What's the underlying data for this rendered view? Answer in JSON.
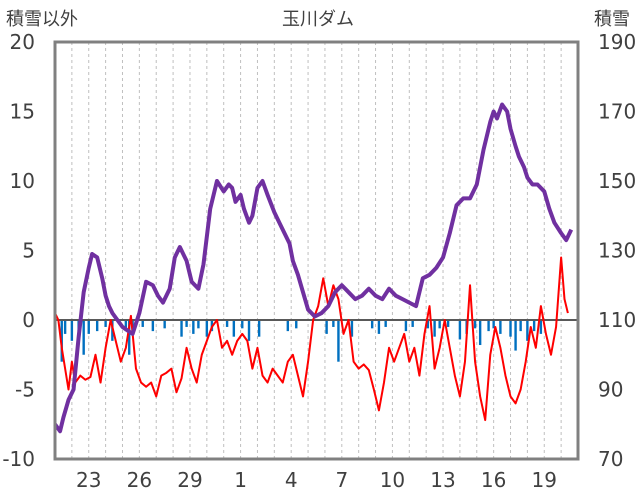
{
  "chart_data": {
    "type": "line",
    "title": "玉川ダム",
    "left_axis": {
      "label": "積雪以外",
      "ylim": [
        -10,
        20
      ],
      "ticks": [
        -10,
        -5,
        0,
        5,
        10,
        15,
        20
      ]
    },
    "right_axis": {
      "label": "積雪",
      "ylim": [
        70,
        190
      ],
      "ticks": [
        70,
        90,
        110,
        130,
        150,
        170,
        190
      ]
    },
    "x_ticks": [
      "23",
      "26",
      "29",
      "1",
      "4",
      "7",
      "10",
      "13",
      "16",
      "19"
    ],
    "x_tick_days": [
      2,
      5,
      8,
      11,
      14,
      17,
      20,
      23,
      26,
      29
    ],
    "x_range_days": [
      0,
      31
    ],
    "grid": "vertical dashed daily lines",
    "colors": {
      "snow_line": "#7030a0",
      "temp_line": "#ff0000",
      "precip_bars": "#0070c0",
      "zero_line": "#595959",
      "frame": "#808080"
    },
    "series": [
      {
        "axis": "right",
        "x": [
          0,
          0.3,
          0.5,
          0.8,
          1.1,
          1.4,
          1.7,
          2.0,
          2.2,
          2.5,
          2.8,
          3.0,
          3.2,
          3.4,
          3.7,
          4.0,
          4.3,
          4.6,
          5.0,
          5.4,
          5.8,
          6.1,
          6.4,
          6.8,
          7.1,
          7.4,
          7.8,
          8.1,
          8.5,
          8.8,
          9.2,
          9.6,
          10.0,
          10.3,
          10.5,
          10.7,
          11.0,
          11.2,
          11.5,
          11.7,
          12.0,
          12.3,
          12.6,
          13.0,
          13.3,
          13.6,
          13.9,
          14.1,
          14.4,
          14.7,
          15.0,
          15.4,
          15.8,
          16.2,
          16.6,
          17.0,
          17.4,
          17.8,
          18.2,
          18.6,
          19.0,
          19.4,
          19.8,
          20.2,
          20.6,
          21.0,
          21.4,
          21.8,
          22.2,
          22.6,
          23.0,
          23.4,
          23.8,
          24.2,
          24.6,
          25.0,
          25.4,
          25.8,
          26.0,
          26.2,
          26.5,
          26.8,
          27.0,
          27.3,
          27.5,
          27.8,
          28.0,
          28.3,
          28.6,
          29.0,
          29.3,
          29.6,
          30.0,
          30.3,
          30.6
        ],
        "y": [
          80,
          78,
          82,
          87,
          90,
          105,
          118,
          125,
          129,
          128,
          122,
          117,
          114,
          112,
          110,
          108,
          107,
          106,
          112,
          121,
          120,
          117,
          115,
          119,
          128,
          131,
          127,
          121,
          119,
          126,
          142,
          150,
          147,
          149,
          148,
          144,
          146,
          142,
          138,
          140,
          148,
          150,
          146,
          141,
          138,
          135,
          132,
          127,
          123,
          118,
          113,
          111,
          112,
          114,
          118,
          120,
          118,
          116,
          117,
          119,
          117,
          116,
          119,
          117,
          116,
          115,
          114,
          122,
          123,
          125,
          128,
          135,
          143,
          145,
          145,
          149,
          159,
          167,
          170,
          168,
          172,
          170,
          165,
          160,
          157,
          154,
          151,
          149,
          149,
          147,
          142,
          138,
          135,
          133,
          136
        ]
      },
      {
        "axis": "left",
        "x": [
          0,
          0.2,
          0.4,
          0.6,
          0.8,
          1.0,
          1.2,
          1.5,
          1.8,
          2.1,
          2.4,
          2.7,
          3.0,
          3.3,
          3.6,
          3.9,
          4.2,
          4.5,
          4.8,
          5.1,
          5.4,
          5.7,
          6.0,
          6.3,
          6.6,
          6.9,
          7.2,
          7.5,
          7.8,
          8.1,
          8.4,
          8.7,
          9.0,
          9.3,
          9.6,
          9.9,
          10.2,
          10.5,
          10.8,
          11.1,
          11.4,
          11.7,
          12.0,
          12.3,
          12.6,
          12.9,
          13.2,
          13.5,
          13.8,
          14.1,
          14.4,
          14.7,
          15.0,
          15.3,
          15.6,
          15.9,
          16.2,
          16.5,
          16.8,
          17.1,
          17.4,
          17.7,
          18.0,
          18.3,
          18.6,
          18.9,
          19.2,
          19.5,
          19.8,
          20.1,
          20.4,
          20.7,
          21.0,
          21.3,
          21.6,
          21.9,
          22.2,
          22.5,
          22.8,
          23.1,
          23.4,
          23.7,
          24.0,
          24.3,
          24.6,
          24.9,
          25.2,
          25.5,
          25.8,
          26.1,
          26.4,
          26.7,
          27.0,
          27.3,
          27.6,
          27.9,
          28.2,
          28.5,
          28.8,
          29.1,
          29.4,
          29.7,
          30.0,
          30.2,
          30.4
        ],
        "y": [
          0.5,
          0,
          -2,
          -3.5,
          -5,
          -3,
          -4.5,
          -4,
          -4.3,
          -4.1,
          -2.5,
          -4.5,
          -2,
          0,
          -1.5,
          -3,
          -2,
          0.3,
          -3.5,
          -4.5,
          -4.8,
          -4.5,
          -5.5,
          -4,
          -3.8,
          -3.5,
          -5.2,
          -4.2,
          -2,
          -3.5,
          -4.5,
          -2.5,
          -1.5,
          -0.5,
          0,
          -2,
          -1.5,
          -2.5,
          -1.5,
          -1,
          -1.5,
          -3.5,
          -2,
          -4,
          -4.5,
          -3.5,
          -4,
          -4.5,
          -3,
          -2.5,
          -4,
          -5.5,
          -3,
          0,
          1,
          3,
          1,
          2.5,
          1.5,
          -1,
          0,
          -3,
          -3.5,
          -3.2,
          -3.6,
          -5,
          -6.5,
          -4.5,
          -2,
          -3,
          -2,
          -1,
          -3,
          -2,
          -4,
          -1,
          1,
          -3.5,
          -2,
          0,
          -2,
          -4,
          -5.5,
          -3,
          2.5,
          -3,
          -5.5,
          -7.2,
          -2.5,
          -0.5,
          -2,
          -4,
          -5.5,
          -6,
          -5,
          -3,
          -0.5,
          -2,
          1,
          -1,
          -2.5,
          -0.5,
          4.5,
          1.5,
          0.5
        ]
      },
      {
        "axis": "left",
        "type": "bar",
        "x": [
          0.4,
          0.6,
          1.0,
          1.4,
          1.7,
          2.0,
          2.5,
          3.0,
          3.4,
          4.2,
          4.4,
          4.6,
          5.2,
          5.8,
          6.5,
          7.5,
          7.8,
          8.2,
          8.5,
          9.0,
          9.3,
          10.2,
          10.6,
          11.1,
          11.5,
          12.1,
          13.8,
          14.3,
          16.1,
          16.5,
          16.8,
          17.6,
          18.8,
          19.2,
          19.6,
          20.8,
          21.2,
          22.1,
          22.5,
          22.8,
          23.3,
          24.0,
          24.4,
          24.9,
          25.2,
          25.7,
          26.0,
          26.4,
          27.0,
          27.3,
          27.6,
          28.0,
          28.4,
          28.8
        ],
        "y": [
          -3,
          -1,
          -1.5,
          -0.8,
          -2.5,
          -1,
          -0.8,
          -0.5,
          -1.5,
          -0.8,
          -2.5,
          -1,
          -0.5,
          -0.8,
          -0.6,
          -1.2,
          -0.5,
          -1,
          -0.6,
          -1.2,
          -0.8,
          -0.5,
          -1.2,
          -0.6,
          -1.5,
          -1.2,
          -0.8,
          -0.6,
          -1,
          -0.5,
          -3,
          -1.2,
          -0.6,
          -1,
          -0.5,
          -0.8,
          -0.5,
          -0.6,
          -1.2,
          -0.6,
          -0.5,
          -1.4,
          -1,
          -0.6,
          -1.8,
          -0.8,
          -0.6,
          -1,
          -1.2,
          -2.2,
          -0.8,
          -1.5,
          -0.8,
          -1
        ]
      }
    ]
  }
}
